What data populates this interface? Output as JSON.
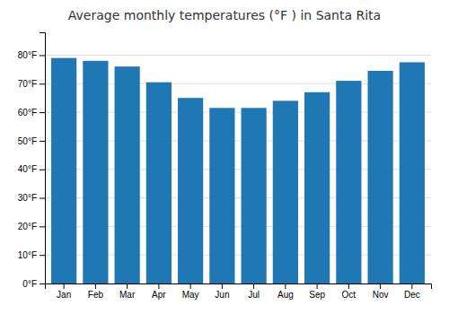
{
  "chart_data": {
    "type": "bar",
    "title": "Average monthly temperatures (°F ) in Santa Rita",
    "categories": [
      "Jan",
      "Feb",
      "Mar",
      "Apr",
      "May",
      "Jun",
      "Jul",
      "Aug",
      "Sep",
      "Oct",
      "Nov",
      "Dec"
    ],
    "values": [
      79,
      78,
      76,
      70.5,
      65,
      61.5,
      61.5,
      64,
      67,
      71,
      74.5,
      77.5
    ],
    "ylim": [
      0,
      88
    ],
    "yticks": [
      {
        "value": 0,
        "label": "0°F"
      },
      {
        "value": 10,
        "label": "10°F"
      },
      {
        "value": 20,
        "label": "20°F"
      },
      {
        "value": 30,
        "label": "30°F"
      },
      {
        "value": 40,
        "label": "40°F"
      },
      {
        "value": 50,
        "label": "50°F"
      },
      {
        "value": 60,
        "label": "60°F"
      },
      {
        "value": 70,
        "label": "70°F"
      },
      {
        "value": 80,
        "label": "80°F"
      }
    ],
    "grid": true
  }
}
